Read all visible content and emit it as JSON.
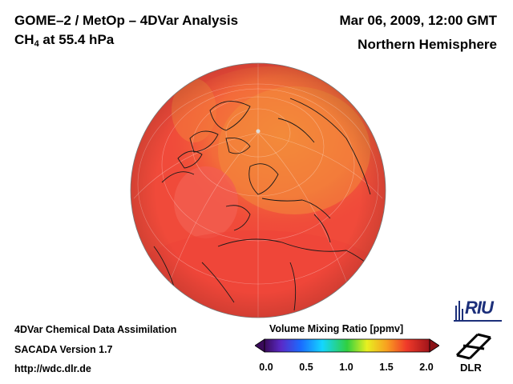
{
  "header": {
    "title_line1": "GOME–2 / MetOp – 4DVar Analysis",
    "species_main": "CH",
    "species_sub": "4",
    "species_rest": " at 55.4 hPa",
    "date": "Mar 06, 2009, 12:00 GMT",
    "region": "Northern Hemisphere"
  },
  "footer": {
    "line1": "4DVar Chemical Data Assimilation",
    "line2": "SACADA Version 1.7",
    "line3": "http://wdc.dlr.de"
  },
  "colorbar": {
    "title": "Volume Mixing Ratio [ppmv]",
    "ticks": [
      "0.0",
      "0.5",
      "1.0",
      "1.5",
      "2.0"
    ],
    "min": 0.0,
    "max": 2.0
  },
  "logos": {
    "riu": "RIU",
    "dlr": "DLR"
  },
  "colors": {
    "field_dominant": "#f04a3a",
    "field_polar": "#f07e3a",
    "field_low": "#f25a4a",
    "coastline": "#1a1a1a",
    "riu_blue": "#1c2f7a"
  }
}
